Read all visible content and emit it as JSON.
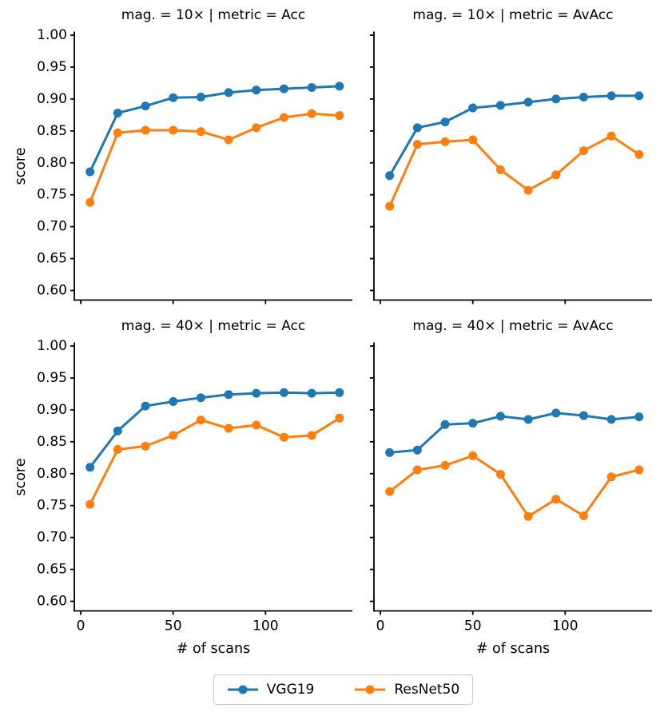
{
  "figure": {
    "ylabel": "score",
    "xlabel": "# of scans",
    "background": "#ffffff",
    "axis_color": "#000000",
    "legend": {
      "border_color": "#cccccc",
      "items": [
        {
          "label": "VGG19",
          "color": "#1f77b4"
        },
        {
          "label": "ResNet50",
          "color": "#ff7f0e"
        }
      ]
    }
  },
  "chart_data": [
    {
      "type": "line",
      "title": "mag. = 10× | metric = Acc",
      "x": [
        5,
        20,
        35,
        50,
        65,
        80,
        95,
        110,
        125,
        140
      ],
      "series": [
        {
          "name": "VGG19",
          "color": "#1f77b4",
          "values": [
            0.786,
            0.878,
            0.889,
            0.902,
            0.903,
            0.91,
            0.914,
            0.916,
            0.918,
            0.92
          ]
        },
        {
          "name": "ResNet50",
          "color": "#ff7f0e",
          "values": [
            0.738,
            0.847,
            0.851,
            0.851,
            0.849,
            0.836,
            0.855,
            0.871,
            0.877,
            0.874
          ]
        }
      ],
      "xlim": [
        -3.5,
        147
      ],
      "ylim": [
        0.585,
        1.005
      ],
      "yticks": [
        0.6,
        0.65,
        0.7,
        0.75,
        0.8,
        0.85,
        0.9,
        0.95,
        1.0
      ],
      "ytick_labels": [
        "0.60",
        "0.65",
        "0.70",
        "0.75",
        "0.80",
        "0.85",
        "0.90",
        "0.95",
        "1.00"
      ],
      "xticks": [
        0,
        50,
        100
      ],
      "xtick_labels": [
        "0",
        "50",
        "100"
      ],
      "show_ytick_labels": true,
      "show_xtick_labels": false,
      "grid": false
    },
    {
      "type": "line",
      "title": "mag. = 10× | metric = AvAcc",
      "x": [
        5,
        20,
        35,
        50,
        65,
        80,
        95,
        110,
        125,
        140
      ],
      "series": [
        {
          "name": "VGG19",
          "color": "#1f77b4",
          "values": [
            0.78,
            0.855,
            0.864,
            0.886,
            0.89,
            0.895,
            0.9,
            0.903,
            0.905,
            0.905
          ]
        },
        {
          "name": "ResNet50",
          "color": "#ff7f0e",
          "values": [
            0.732,
            0.829,
            0.833,
            0.836,
            0.789,
            0.757,
            0.781,
            0.819,
            0.842,
            0.813
          ]
        }
      ],
      "xlim": [
        -3.5,
        147
      ],
      "ylim": [
        0.585,
        1.005
      ],
      "yticks": [
        0.6,
        0.65,
        0.7,
        0.75,
        0.8,
        0.85,
        0.9,
        0.95,
        1.0
      ],
      "ytick_labels": [
        "0.60",
        "0.65",
        "0.70",
        "0.75",
        "0.80",
        "0.85",
        "0.90",
        "0.95",
        "1.00"
      ],
      "xticks": [
        0,
        50,
        100
      ],
      "xtick_labels": [
        "0",
        "50",
        "100"
      ],
      "show_ytick_labels": false,
      "show_xtick_labels": false,
      "grid": false
    },
    {
      "type": "line",
      "title": "mag. = 40× | metric = Acc",
      "x": [
        5,
        20,
        35,
        50,
        65,
        80,
        95,
        110,
        125,
        140
      ],
      "series": [
        {
          "name": "VGG19",
          "color": "#1f77b4",
          "values": [
            0.81,
            0.867,
            0.906,
            0.913,
            0.919,
            0.924,
            0.926,
            0.927,
            0.926,
            0.927
          ]
        },
        {
          "name": "ResNet50",
          "color": "#ff7f0e",
          "values": [
            0.752,
            0.838,
            0.843,
            0.86,
            0.884,
            0.871,
            0.876,
            0.857,
            0.86,
            0.887
          ]
        }
      ],
      "xlim": [
        -3.5,
        147
      ],
      "ylim": [
        0.585,
        1.005
      ],
      "yticks": [
        0.6,
        0.65,
        0.7,
        0.75,
        0.8,
        0.85,
        0.9,
        0.95,
        1.0
      ],
      "ytick_labels": [
        "0.60",
        "0.65",
        "0.70",
        "0.75",
        "0.80",
        "0.85",
        "0.90",
        "0.95",
        "1.00"
      ],
      "xticks": [
        0,
        50,
        100
      ],
      "xtick_labels": [
        "0",
        "50",
        "100"
      ],
      "show_ytick_labels": true,
      "show_xtick_labels": true,
      "grid": false
    },
    {
      "type": "line",
      "title": "mag. = 40× | metric = AvAcc",
      "x": [
        5,
        20,
        35,
        50,
        65,
        80,
        95,
        110,
        125,
        140
      ],
      "series": [
        {
          "name": "VGG19",
          "color": "#1f77b4",
          "values": [
            0.833,
            0.837,
            0.877,
            0.879,
            0.89,
            0.885,
            0.895,
            0.891,
            0.885,
            0.889
          ]
        },
        {
          "name": "ResNet50",
          "color": "#ff7f0e",
          "values": [
            0.772,
            0.806,
            0.813,
            0.828,
            0.799,
            0.733,
            0.76,
            0.734,
            0.795,
            0.806
          ]
        }
      ],
      "xlim": [
        -3.5,
        147
      ],
      "ylim": [
        0.585,
        1.005
      ],
      "yticks": [
        0.6,
        0.65,
        0.7,
        0.75,
        0.8,
        0.85,
        0.9,
        0.95,
        1.0
      ],
      "ytick_labels": [
        "0.60",
        "0.65",
        "0.70",
        "0.75",
        "0.80",
        "0.85",
        "0.90",
        "0.95",
        "1.00"
      ],
      "xticks": [
        0,
        50,
        100
      ],
      "xtick_labels": [
        "0",
        "50",
        "100"
      ],
      "show_ytick_labels": false,
      "show_xtick_labels": true,
      "grid": false
    }
  ]
}
